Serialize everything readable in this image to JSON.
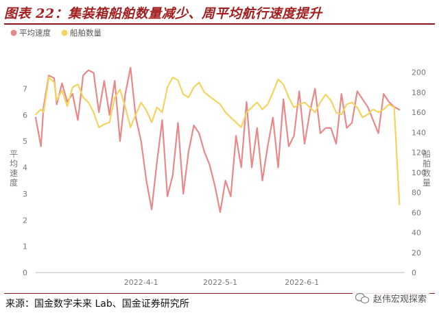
{
  "title": "图表 22：集装箱船舶数量减少、周平均航行速度提升",
  "source": "来源：国金数字未来 Lab、国金证券研究所",
  "watermark": {
    "text": "赵伟宏观探索",
    "icon": "wechat-icon"
  },
  "colors": {
    "speed": "#e8888a",
    "ships": "#f4d35e",
    "title": "#a31f1f",
    "rule": "#8b1a1a",
    "axis": "#888888"
  },
  "chart_data": {
    "type": "line",
    "x_start": "2022-02-20",
    "x_end": "2022-07-10",
    "x_ticks": [
      "2022-4-1",
      "2022-5-1",
      "2022-6-1"
    ],
    "left_axis": {
      "label": "平均速度",
      "range": [
        0,
        8
      ],
      "ticks": [
        "0",
        "1",
        "2",
        "3",
        "4",
        "5",
        "6",
        "7"
      ]
    },
    "right_axis": {
      "label": "船舶数量",
      "range": [
        0,
        210
      ],
      "ticks": [
        "0",
        "20",
        "40",
        "60",
        "80",
        "100",
        "120",
        "140",
        "160",
        "180",
        "200"
      ]
    },
    "grid": false,
    "legend": "top-left",
    "series": [
      {
        "name": "平均速度",
        "axis": "left",
        "color": "#e8888a",
        "x": [
          "2022-02-20",
          "2022-02-22",
          "2022-02-23",
          "2022-02-25",
          "2022-02-27",
          "2022-02-28",
          "2022-03-02",
          "2022-03-04",
          "2022-03-06",
          "2022-03-08",
          "2022-03-10",
          "2022-03-12",
          "2022-03-14",
          "2022-03-16",
          "2022-03-18",
          "2022-03-20",
          "2022-03-22",
          "2022-03-24",
          "2022-03-26",
          "2022-03-28",
          "2022-03-30",
          "2022-04-01",
          "2022-04-03",
          "2022-04-05",
          "2022-04-07",
          "2022-04-09",
          "2022-04-11",
          "2022-04-13",
          "2022-04-15",
          "2022-04-17",
          "2022-04-19",
          "2022-04-21",
          "2022-04-23",
          "2022-04-25",
          "2022-04-27",
          "2022-04-29",
          "2022-05-01",
          "2022-05-03",
          "2022-05-05",
          "2022-05-07",
          "2022-05-09",
          "2022-05-11",
          "2022-05-13",
          "2022-05-15",
          "2022-05-17",
          "2022-05-19",
          "2022-05-21",
          "2022-05-23",
          "2022-05-25",
          "2022-05-27",
          "2022-05-29",
          "2022-05-31",
          "2022-06-02",
          "2022-06-04",
          "2022-06-06",
          "2022-06-08",
          "2022-06-10",
          "2022-06-12",
          "2022-06-14",
          "2022-06-16",
          "2022-06-18",
          "2022-06-20",
          "2022-06-22",
          "2022-06-24",
          "2022-06-26",
          "2022-06-28",
          "2022-06-30",
          "2022-07-02",
          "2022-07-04",
          "2022-07-06",
          "2022-07-08"
        ],
        "values": [
          5.9,
          4.8,
          6.3,
          7.5,
          7.4,
          6.4,
          7.2,
          6.5,
          6.8,
          5.8,
          7.5,
          7.7,
          7.6,
          6.1,
          7.3,
          6.0,
          7.3,
          5.0,
          6.8,
          7.8,
          5.9,
          5.0,
          3.5,
          2.4,
          4.2,
          5.8,
          2.9,
          3.7,
          5.7,
          3.0,
          4.6,
          5.6,
          5.3,
          4.6,
          4.1,
          3.3,
          2.3,
          3.5,
          2.9,
          5.2,
          4.0,
          6.5,
          4.0,
          5.5,
          3.5,
          4.8,
          5.9,
          4.0,
          6.6,
          4.8,
          5.2,
          6.9,
          4.9,
          6.1,
          7.0,
          5.3,
          5.5,
          5.5,
          4.9,
          6.8,
          5.5,
          5.7,
          6.9,
          6.6,
          6.3,
          5.8,
          5.3,
          6.8,
          6.5,
          6.3,
          6.2
        ]
      },
      {
        "name": "船舶数量",
        "axis": "right",
        "color": "#f4d35e",
        "x": [
          "2022-02-20",
          "2022-02-22",
          "2022-02-23",
          "2022-02-25",
          "2022-02-27",
          "2022-02-28",
          "2022-03-02",
          "2022-03-04",
          "2022-03-06",
          "2022-03-08",
          "2022-03-10",
          "2022-03-12",
          "2022-03-14",
          "2022-03-16",
          "2022-03-18",
          "2022-03-20",
          "2022-03-22",
          "2022-03-24",
          "2022-03-26",
          "2022-03-28",
          "2022-03-30",
          "2022-04-01",
          "2022-04-03",
          "2022-04-05",
          "2022-04-07",
          "2022-04-09",
          "2022-04-11",
          "2022-04-13",
          "2022-04-15",
          "2022-04-17",
          "2022-04-19",
          "2022-04-21",
          "2022-04-23",
          "2022-04-25",
          "2022-04-27",
          "2022-04-29",
          "2022-05-01",
          "2022-05-03",
          "2022-05-05",
          "2022-05-07",
          "2022-05-09",
          "2022-05-11",
          "2022-05-13",
          "2022-05-15",
          "2022-05-17",
          "2022-05-19",
          "2022-05-21",
          "2022-05-23",
          "2022-05-25",
          "2022-05-27",
          "2022-05-29",
          "2022-05-31",
          "2022-06-02",
          "2022-06-04",
          "2022-06-06",
          "2022-06-08",
          "2022-06-10",
          "2022-06-12",
          "2022-06-14",
          "2022-06-16",
          "2022-06-18",
          "2022-06-20",
          "2022-06-22",
          "2022-06-24",
          "2022-06-26",
          "2022-06-28",
          "2022-06-30",
          "2022-07-02",
          "2022-07-04",
          "2022-07-06",
          "2022-07-08"
        ],
        "values": [
          158,
          163,
          160,
          195,
          190,
          172,
          182,
          166,
          185,
          188,
          175,
          170,
          160,
          145,
          148,
          150,
          175,
          183,
          165,
          145,
          158,
          170,
          162,
          150,
          165,
          160,
          185,
          195,
          192,
          178,
          175,
          185,
          190,
          180,
          176,
          172,
          168,
          160,
          155,
          150,
          145,
          160,
          165,
          170,
          163,
          168,
          180,
          193,
          188,
          175,
          165,
          168,
          170,
          165,
          160,
          170,
          178,
          172,
          160,
          158,
          168,
          170,
          165,
          155,
          158,
          163,
          160,
          163,
          168,
          165,
          68
        ]
      }
    ]
  }
}
